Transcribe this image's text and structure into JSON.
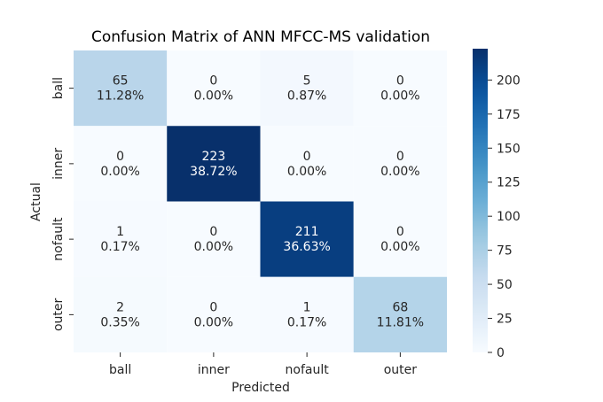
{
  "chart_data": {
    "type": "heatmap",
    "title": "Confusion Matrix of ANN MFCC-MS validation",
    "xlabel": "Predicted",
    "ylabel": "Actual",
    "x_categories": [
      "ball",
      "inner",
      "nofault",
      "outer"
    ],
    "y_categories": [
      "ball",
      "inner",
      "nofault",
      "outer"
    ],
    "counts": [
      [
        65,
        0,
        5,
        0
      ],
      [
        0,
        223,
        0,
        0
      ],
      [
        1,
        0,
        211,
        0
      ],
      [
        2,
        0,
        1,
        68
      ]
    ],
    "percentages": [
      [
        "11.28%",
        "0.00%",
        "0.87%",
        "0.00%"
      ],
      [
        "0.00%",
        "38.72%",
        "0.00%",
        "0.00%"
      ],
      [
        "0.17%",
        "0.00%",
        "36.63%",
        "0.00%"
      ],
      [
        "0.35%",
        "0.00%",
        "0.17%",
        "11.81%"
      ]
    ],
    "colorbar": {
      "min": 0,
      "max": 223,
      "ticks": [
        0,
        25,
        50,
        75,
        100,
        125,
        150,
        175,
        200
      ]
    },
    "colormap": "Blues",
    "colors": {
      "low": "#f7fbff",
      "high": "#08306b",
      "text_dark": "#262626",
      "text_light": "#ffffff",
      "background": "#ffffff"
    }
  }
}
